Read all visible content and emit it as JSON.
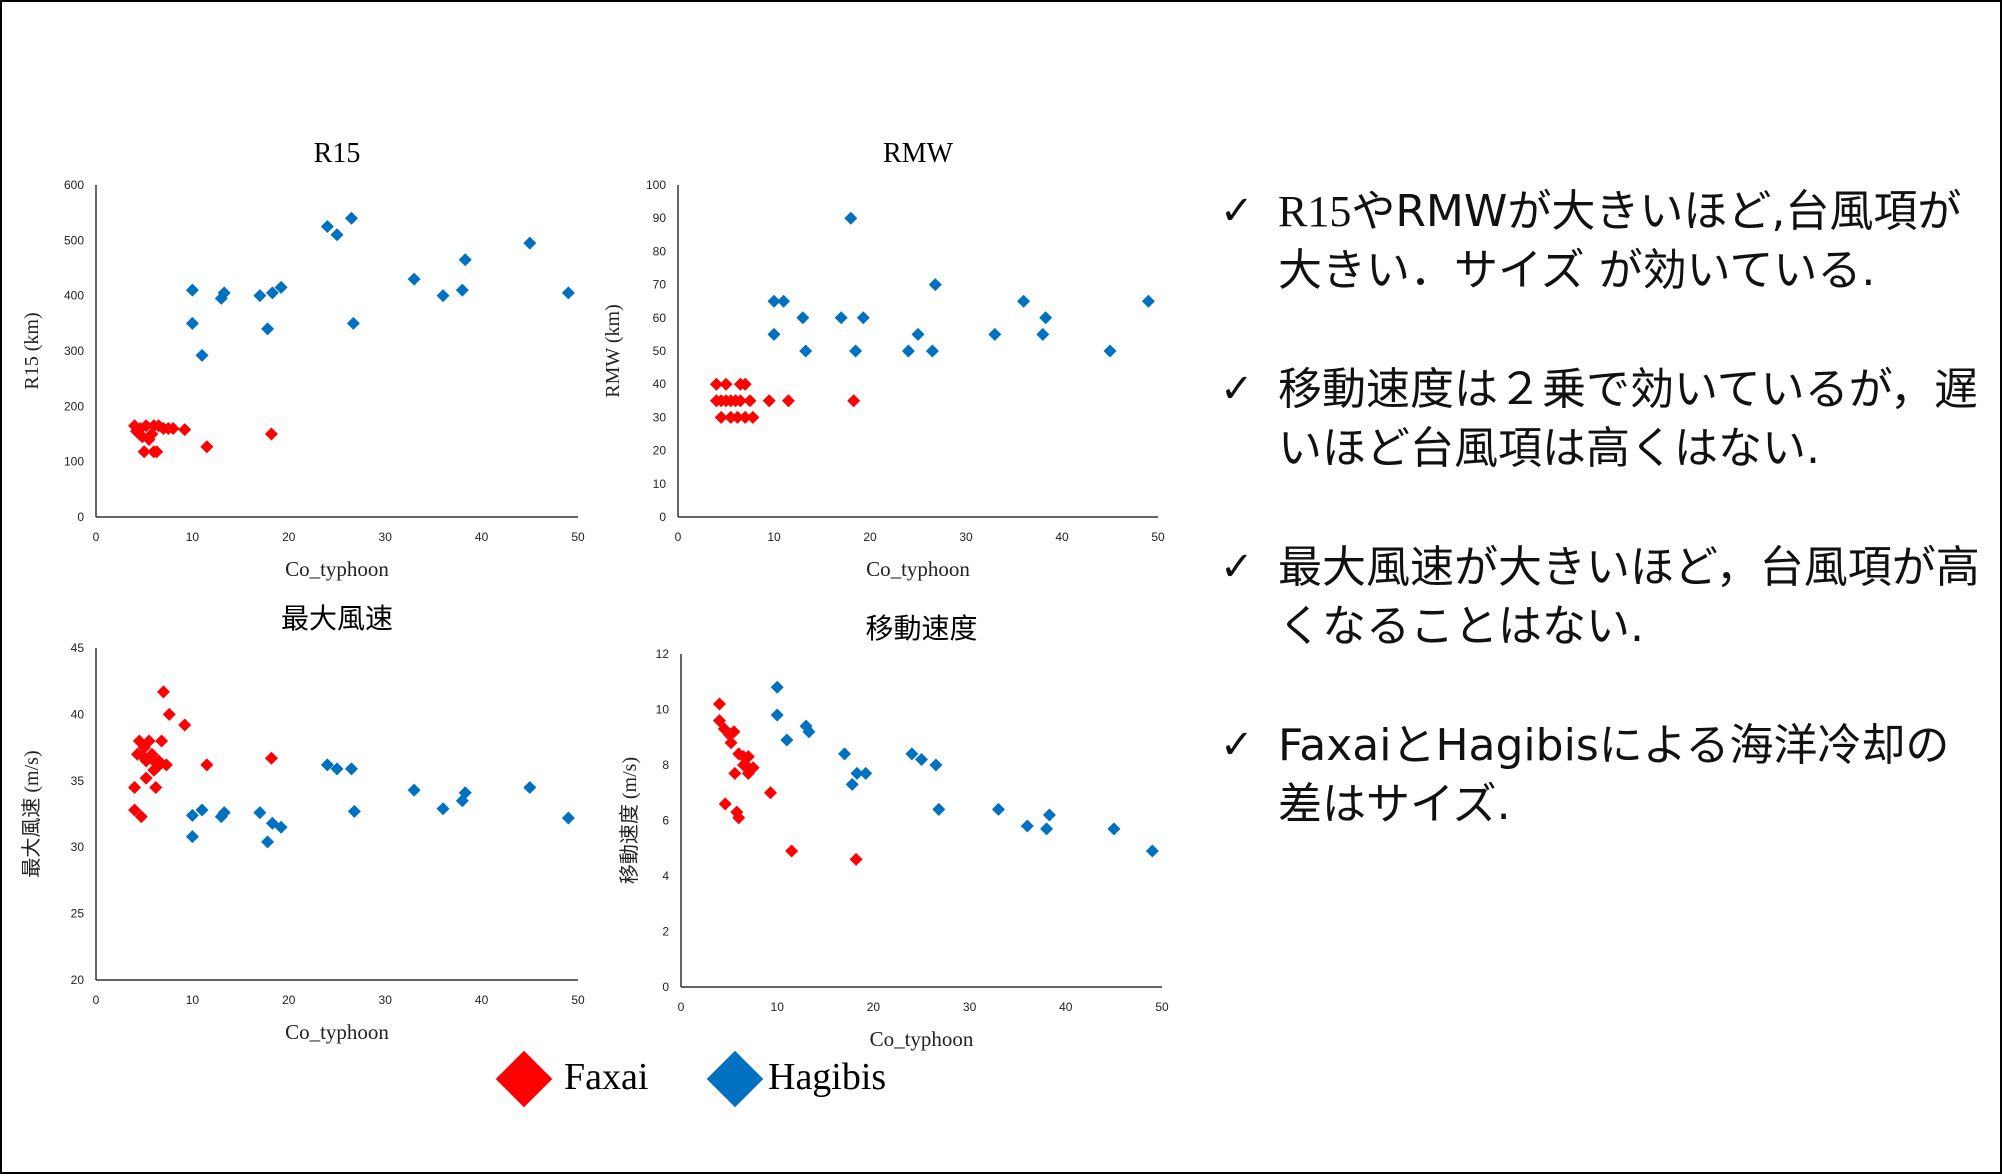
{
  "legend": [
    {
      "name": "Faxai",
      "color": "#ff0000"
    },
    {
      "name": "Hagibis",
      "color": "#0070c0"
    }
  ],
  "bullets": [
    {
      "icon": "check-icon",
      "lead": "R15",
      "text": "やRMWが大きいほど,台風項が大きい．サイズ が効いている."
    },
    {
      "icon": "check-icon",
      "lead": "",
      "text": "移動速度は２乗で効いているが，遅いほど台風項は高くはない."
    },
    {
      "icon": "check-icon",
      "lead": "",
      "text": "最大風速が大きいほど，台風項が高くなることはない."
    },
    {
      "icon": "check-icon",
      "lead": "",
      "text": "FaxaiとHagibisによる海洋冷却の差はサイズ."
    }
  ],
  "chart_data": [
    {
      "type": "scatter",
      "title": "R15",
      "xlabel": "Co_typhoon",
      "ylabel": "R15 (km)",
      "xlim": [
        0,
        50
      ],
      "ylim": [
        0,
        600
      ],
      "xticks": [
        "0",
        "10",
        "20",
        "30",
        "40",
        "50"
      ],
      "yticks": [
        "0",
        "100",
        "200",
        "300",
        "400",
        "500",
        "600"
      ],
      "grid": false,
      "series": [
        {
          "name": "Faxai",
          "color": "#ff0000",
          "points": [
            [
              4,
              165
            ],
            [
              4.2,
              155
            ],
            [
              4.5,
              150
            ],
            [
              4.8,
              145
            ],
            [
              4.6,
              160
            ],
            [
              5.2,
              165
            ],
            [
              5.5,
              140
            ],
            [
              5.8,
              150
            ],
            [
              6,
              165
            ],
            [
              6.5,
              165
            ],
            [
              7,
              160
            ],
            [
              7.5,
              160
            ],
            [
              8,
              160
            ],
            [
              9.2,
              158
            ],
            [
              5,
              118
            ],
            [
              6,
              118
            ],
            [
              6.3,
              118
            ],
            [
              11.5,
              127
            ],
            [
              18.2,
              150
            ]
          ]
        },
        {
          "name": "Hagibis",
          "color": "#0070c0",
          "points": [
            [
              10,
              410
            ],
            [
              10,
              350
            ],
            [
              11,
              292
            ],
            [
              13,
              395
            ],
            [
              13.3,
              405
            ],
            [
              17,
              400
            ],
            [
              17.8,
              340
            ],
            [
              18.3,
              405
            ],
            [
              19.2,
              415
            ],
            [
              24,
              525
            ],
            [
              25,
              510
            ],
            [
              26.5,
              540
            ],
            [
              26.7,
              350
            ],
            [
              33,
              430
            ],
            [
              36,
              400
            ],
            [
              38,
              410
            ],
            [
              38.3,
              465
            ],
            [
              45,
              495
            ],
            [
              49,
              405
            ]
          ]
        }
      ]
    },
    {
      "type": "scatter",
      "title": "RMW",
      "xlabel": "Co_typhoon",
      "ylabel": "RMW (km)",
      "xlim": [
        0,
        50
      ],
      "ylim": [
        0,
        100
      ],
      "xticks": [
        "0",
        "10",
        "20",
        "30",
        "40",
        "50"
      ],
      "yticks": [
        "0",
        "10",
        "20",
        "30",
        "40",
        "50",
        "60",
        "70",
        "80",
        "90",
        "100"
      ],
      "grid": false,
      "series": [
        {
          "name": "Faxai",
          "color": "#ff0000",
          "points": [
            [
              4,
              40
            ],
            [
              5,
              40
            ],
            [
              6.5,
              40
            ],
            [
              7,
              40
            ],
            [
              4,
              35
            ],
            [
              4.5,
              35
            ],
            [
              5,
              35
            ],
            [
              5.5,
              35
            ],
            [
              6,
              35
            ],
            [
              6.5,
              35
            ],
            [
              7.5,
              35
            ],
            [
              9.5,
              35
            ],
            [
              11.5,
              35
            ],
            [
              18.3,
              35
            ],
            [
              4.5,
              30
            ],
            [
              5.5,
              30
            ],
            [
              6.2,
              30
            ],
            [
              7,
              30
            ],
            [
              7.8,
              30
            ]
          ]
        },
        {
          "name": "Hagibis",
          "color": "#0070c0",
          "points": [
            [
              10,
              65
            ],
            [
              11,
              65
            ],
            [
              10,
              55
            ],
            [
              13,
              60
            ],
            [
              13.3,
              50
            ],
            [
              17,
              60
            ],
            [
              18,
              90
            ],
            [
              18.5,
              50
            ],
            [
              19.3,
              60
            ],
            [
              24,
              50
            ],
            [
              25,
              55
            ],
            [
              26.5,
              50
            ],
            [
              26.8,
              70
            ],
            [
              33,
              55
            ],
            [
              36,
              65
            ],
            [
              38,
              55
            ],
            [
              38.3,
              60
            ],
            [
              45,
              50
            ],
            [
              49,
              65
            ]
          ]
        }
      ]
    },
    {
      "type": "scatter",
      "title": "最大風速",
      "xlabel": "Co_typhoon",
      "ylabel": "最大風速 (m/s)",
      "xlim": [
        0,
        50
      ],
      "ylim": [
        20,
        45
      ],
      "xticks": [
        "0",
        "10",
        "20",
        "30",
        "40",
        "50"
      ],
      "yticks": [
        "20",
        "25",
        "30",
        "35",
        "40",
        "45"
      ],
      "grid": false,
      "series": [
        {
          "name": "Faxai",
          "color": "#ff0000",
          "points": [
            [
              7,
              41.7
            ],
            [
              7.6,
              40
            ],
            [
              9.2,
              39.2
            ],
            [
              4.5,
              38
            ],
            [
              5,
              37.5
            ],
            [
              5.5,
              38
            ],
            [
              6.8,
              38
            ],
            [
              4.3,
              37
            ],
            [
              4.8,
              36.9
            ],
            [
              5.8,
              37
            ],
            [
              5.2,
              36.5
            ],
            [
              6,
              36.5
            ],
            [
              6.5,
              36.5
            ],
            [
              7.3,
              36.2
            ],
            [
              11.5,
              36.2
            ],
            [
              18.2,
              36.7
            ],
            [
              6.3,
              36
            ],
            [
              5.2,
              35.2
            ],
            [
              6,
              35.8
            ],
            [
              4,
              34.5
            ],
            [
              6.2,
              34.5
            ],
            [
              4,
              32.8
            ],
            [
              4.7,
              32.3
            ]
          ]
        },
        {
          "name": "Hagibis",
          "color": "#0070c0",
          "points": [
            [
              10,
              32.4
            ],
            [
              10,
              30.8
            ],
            [
              11,
              32.8
            ],
            [
              13,
              32.3
            ],
            [
              13.3,
              32.6
            ],
            [
              17,
              32.6
            ],
            [
              17.8,
              30.4
            ],
            [
              18.3,
              31.8
            ],
            [
              19.2,
              31.5
            ],
            [
              24,
              36.2
            ],
            [
              25,
              35.9
            ],
            [
              26.5,
              35.9
            ],
            [
              26.8,
              32.7
            ],
            [
              33,
              34.3
            ],
            [
              36,
              32.9
            ],
            [
              38,
              33.5
            ],
            [
              38.3,
              34.1
            ],
            [
              45,
              34.5
            ],
            [
              49,
              32.2
            ]
          ]
        }
      ]
    },
    {
      "type": "scatter",
      "title": "移動速度",
      "xlabel": "Co_typhoon",
      "ylabel": "移動速度 (m/s)",
      "xlim": [
        0,
        50
      ],
      "ylim": [
        0,
        12
      ],
      "xticks": [
        "0",
        "10",
        "20",
        "30",
        "40",
        "50"
      ],
      "yticks": [
        "0",
        "2",
        "4",
        "6",
        "8",
        "10",
        "12"
      ],
      "grid": false,
      "series": [
        {
          "name": "Faxai",
          "color": "#ff0000",
          "points": [
            [
              4,
              10.2
            ],
            [
              4,
              9.6
            ],
            [
              4.5,
              9.3
            ],
            [
              5,
              9.1
            ],
            [
              5.5,
              9.2
            ],
            [
              5.2,
              8.8
            ],
            [
              6,
              8.4
            ],
            [
              6.5,
              8.3
            ],
            [
              7,
              8.3
            ],
            [
              6.5,
              8
            ],
            [
              7,
              7.9
            ],
            [
              7.5,
              7.9
            ],
            [
              7,
              7.7
            ],
            [
              5.6,
              7.7
            ],
            [
              9.3,
              7
            ],
            [
              4.6,
              6.6
            ],
            [
              5.8,
              6.3
            ],
            [
              6,
              6.1
            ],
            [
              11.5,
              4.9
            ],
            [
              18.2,
              4.6
            ]
          ]
        },
        {
          "name": "Hagibis",
          "color": "#0070c0",
          "points": [
            [
              10,
              10.8
            ],
            [
              10,
              9.8
            ],
            [
              11,
              8.9
            ],
            [
              13,
              9.4
            ],
            [
              13.3,
              9.2
            ],
            [
              17,
              8.4
            ],
            [
              17.8,
              7.3
            ],
            [
              18.3,
              7.7
            ],
            [
              19.2,
              7.7
            ],
            [
              24,
              8.4
            ],
            [
              25,
              8.2
            ],
            [
              26.5,
              8
            ],
            [
              26.8,
              6.4
            ],
            [
              33,
              6.4
            ],
            [
              36,
              5.8
            ],
            [
              38,
              5.7
            ],
            [
              38.3,
              6.2
            ],
            [
              45,
              5.7
            ],
            [
              49,
              4.9
            ]
          ]
        }
      ]
    }
  ]
}
